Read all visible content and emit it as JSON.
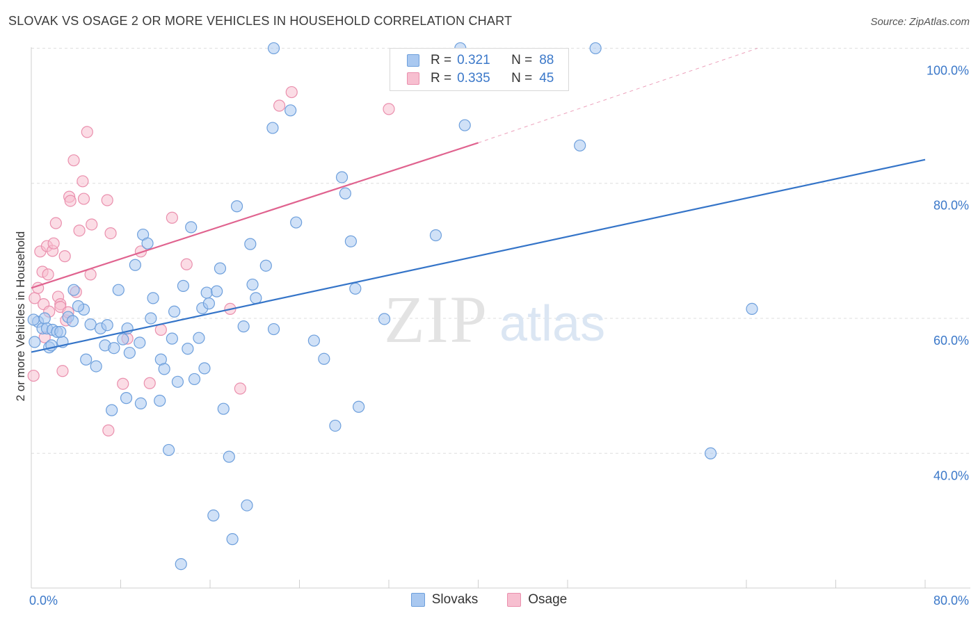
{
  "title": "SLOVAK VS OSAGE 2 OR MORE VEHICLES IN HOUSEHOLD CORRELATION CHART",
  "source": "Source: ZipAtlas.com",
  "colors": {
    "blue_fill": "#a9c8f0",
    "blue_stroke": "#6d9fdc",
    "blue_line": "#3474c8",
    "pink_fill": "#f7bfd0",
    "pink_stroke": "#ea8fad",
    "pink_line": "#e0638f",
    "axis_text": "#3b78c9",
    "grid": "#dddddd"
  },
  "legend": {
    "rows": [
      {
        "series": "Slovaks",
        "r_label": "R =",
        "r_value": "0.321",
        "n_label": "N =",
        "n_value": "88"
      },
      {
        "series": "Osage",
        "r_label": "R =",
        "r_value": "0.335",
        "n_label": "N =",
        "n_value": "45"
      }
    ]
  },
  "watermark": {
    "zip": "ZIP",
    "atlas": "atlas"
  },
  "chart_data": {
    "type": "scatter",
    "title": "SLOVAK VS OSAGE 2 OR MORE VEHICLES IN HOUSEHOLD CORRELATION CHART",
    "xlabel": "",
    "ylabel": "2 or more Vehicles in Household",
    "xlim": [
      0,
      80
    ],
    "ylim": [
      21.5,
      102
    ],
    "x_tick_labels": [
      {
        "value": 0,
        "label": "0.0%"
      },
      {
        "value": 80,
        "label": "80.0%"
      }
    ],
    "y_tick_labels": [
      {
        "value": 40,
        "label": "40.0%"
      },
      {
        "value": 60,
        "label": "60.0%"
      },
      {
        "value": 80,
        "label": "80.0%"
      },
      {
        "value": 100,
        "label": "100.0%"
      }
    ],
    "x_minor_ticks": [
      0,
      8,
      16,
      24,
      32,
      40,
      48,
      64,
      72,
      80
    ],
    "grid": true,
    "legend_position": "top-center",
    "series": [
      {
        "name": "Slovaks",
        "r": 0.321,
        "n": 88,
        "trend": {
          "x": [
            0,
            80
          ],
          "y": [
            55.0,
            83.5
          ],
          "dashed_to": null
        },
        "points": [
          [
            0.3,
            56.5
          ],
          [
            0.6,
            59.5
          ],
          [
            1.0,
            58.5
          ],
          [
            1.2,
            60.0
          ],
          [
            1.4,
            58.5
          ],
          [
            1.6,
            55.7
          ],
          [
            1.9,
            58.3
          ],
          [
            2.3,
            58.0
          ],
          [
            2.8,
            56.5
          ],
          [
            2.6,
            58.0
          ],
          [
            3.3,
            60.2
          ],
          [
            3.7,
            59.6
          ],
          [
            3.8,
            64.2
          ],
          [
            4.7,
            61.3
          ],
          [
            4.9,
            53.9
          ],
          [
            4.2,
            61.8
          ],
          [
            5.3,
            59.1
          ],
          [
            5.8,
            52.9
          ],
          [
            6.2,
            58.5
          ],
          [
            6.6,
            56.0
          ],
          [
            6.8,
            59.0
          ],
          [
            7.2,
            46.4
          ],
          [
            7.4,
            55.6
          ],
          [
            7.8,
            64.2
          ],
          [
            8.2,
            56.9
          ],
          [
            8.5,
            48.2
          ],
          [
            8.6,
            58.5
          ],
          [
            8.8,
            54.9
          ],
          [
            9.3,
            67.9
          ],
          [
            9.7,
            56.4
          ],
          [
            9.8,
            47.4
          ],
          [
            10.0,
            72.4
          ],
          [
            10.4,
            71.1
          ],
          [
            10.7,
            60.0
          ],
          [
            10.9,
            63.0
          ],
          [
            11.5,
            47.8
          ],
          [
            11.6,
            53.9
          ],
          [
            11.9,
            52.5
          ],
          [
            12.3,
            40.5
          ],
          [
            12.6,
            57.0
          ],
          [
            12.8,
            61.0
          ],
          [
            13.1,
            50.6
          ],
          [
            13.4,
            23.6
          ],
          [
            13.6,
            64.8
          ],
          [
            14.0,
            55.5
          ],
          [
            14.3,
            73.5
          ],
          [
            14.6,
            51.0
          ],
          [
            15.0,
            57.1
          ],
          [
            15.3,
            61.5
          ],
          [
            15.5,
            52.6
          ],
          [
            15.7,
            63.8
          ],
          [
            15.9,
            62.2
          ],
          [
            16.3,
            30.8
          ],
          [
            16.6,
            64.0
          ],
          [
            16.9,
            67.4
          ],
          [
            17.2,
            46.6
          ],
          [
            17.7,
            39.5
          ],
          [
            18.0,
            27.3
          ],
          [
            18.4,
            76.6
          ],
          [
            19.0,
            58.8
          ],
          [
            19.3,
            32.3
          ],
          [
            19.6,
            71.0
          ],
          [
            19.8,
            65.0
          ],
          [
            20.1,
            63.0
          ],
          [
            21.0,
            67.8
          ],
          [
            21.6,
            88.2
          ],
          [
            21.7,
            58.4
          ],
          [
            23.2,
            90.8
          ],
          [
            21.7,
            100.0
          ],
          [
            23.7,
            74.2
          ],
          [
            25.3,
            56.7
          ],
          [
            26.2,
            54.0
          ],
          [
            27.2,
            44.1
          ],
          [
            27.8,
            80.9
          ],
          [
            28.1,
            78.5
          ],
          [
            28.6,
            71.4
          ],
          [
            29.0,
            64.4
          ],
          [
            29.3,
            46.9
          ],
          [
            31.6,
            59.9
          ],
          [
            36.2,
            72.3
          ],
          [
            38.4,
            100.0
          ],
          [
            38.8,
            88.6
          ],
          [
            49.1,
            85.6
          ],
          [
            50.5,
            100.0
          ],
          [
            60.8,
            40.0
          ],
          [
            64.5,
            61.4
          ],
          [
            0.2,
            59.8
          ],
          [
            1.8,
            56.0
          ]
        ]
      },
      {
        "name": "Osage",
        "r": 0.335,
        "n": 45,
        "trend": {
          "x": [
            0,
            40
          ],
          "y": [
            64.5,
            86.0
          ],
          "dashed_to": {
            "x": 65,
            "y": 100
          }
        },
        "points": [
          [
            0.2,
            51.5
          ],
          [
            0.3,
            63.0
          ],
          [
            0.6,
            64.5
          ],
          [
            0.8,
            69.9
          ],
          [
            1.0,
            66.9
          ],
          [
            1.1,
            62.1
          ],
          [
            1.2,
            57.2
          ],
          [
            1.4,
            70.7
          ],
          [
            1.5,
            66.5
          ],
          [
            1.6,
            61.0
          ],
          [
            1.9,
            70.0
          ],
          [
            2.0,
            71.1
          ],
          [
            2.2,
            74.1
          ],
          [
            2.4,
            63.2
          ],
          [
            2.6,
            62.1
          ],
          [
            2.6,
            61.7
          ],
          [
            2.8,
            52.2
          ],
          [
            3.0,
            69.2
          ],
          [
            3.1,
            59.7
          ],
          [
            3.3,
            60.9
          ],
          [
            3.4,
            78.0
          ],
          [
            3.5,
            77.4
          ],
          [
            3.8,
            83.4
          ],
          [
            4.0,
            63.9
          ],
          [
            4.3,
            73.0
          ],
          [
            4.6,
            80.3
          ],
          [
            4.7,
            77.7
          ],
          [
            5.0,
            87.6
          ],
          [
            5.3,
            66.5
          ],
          [
            5.4,
            73.9
          ],
          [
            6.8,
            77.5
          ],
          [
            6.9,
            43.4
          ],
          [
            7.1,
            72.6
          ],
          [
            8.2,
            50.3
          ],
          [
            8.6,
            57.0
          ],
          [
            9.8,
            69.9
          ],
          [
            10.6,
            50.4
          ],
          [
            11.6,
            58.3
          ],
          [
            12.6,
            74.9
          ],
          [
            13.9,
            68.0
          ],
          [
            17.8,
            61.4
          ],
          [
            18.7,
            49.6
          ],
          [
            22.2,
            91.5
          ],
          [
            23.3,
            93.5
          ],
          [
            32.0,
            91.0
          ]
        ]
      }
    ]
  }
}
